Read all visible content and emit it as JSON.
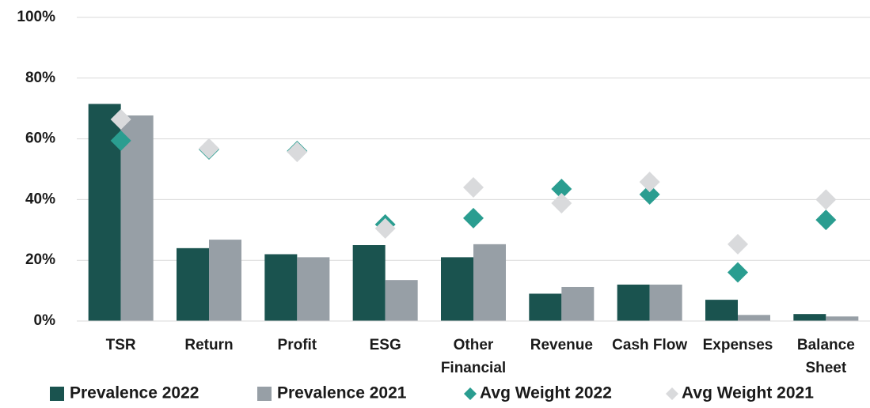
{
  "chart_data": {
    "type": "bar",
    "categories": [
      "TSR",
      "Return",
      "Profit",
      "ESG",
      "Other Financial",
      "Revenue",
      "Cash Flow",
      "Expenses",
      "Balance Sheet"
    ],
    "series": [
      {
        "name": "Prevalence 2022",
        "type": "bar",
        "color": "#1a534f",
        "values": [
          71.5,
          24,
          22,
          25,
          21,
          9,
          12,
          7,
          2.3
        ]
      },
      {
        "name": "Prevalence 2021",
        "type": "bar",
        "color": "#979fa6",
        "values": [
          67.7,
          26.8,
          21,
          13.5,
          25.3,
          11.2,
          12,
          2,
          1.5
        ]
      },
      {
        "name": "Avg Weight 2022",
        "type": "scatter",
        "color": "#2a9d90",
        "values": [
          59.4,
          56.5,
          56,
          31.8,
          33.9,
          43.5,
          41.7,
          16,
          33.3
        ]
      },
      {
        "name": "Avg Weight 2021",
        "type": "scatter",
        "color": "#d9dadc",
        "values": [
          66.4,
          56.8,
          55.7,
          30.5,
          44,
          38.8,
          45.8,
          25.3,
          40
        ]
      }
    ],
    "ylim": [
      0,
      100
    ],
    "yticks": [
      {
        "value": 0,
        "label": "0%"
      },
      {
        "value": 20,
        "label": "20%"
      },
      {
        "value": 40,
        "label": "40%"
      },
      {
        "value": 60,
        "label": "60%"
      },
      {
        "value": 80,
        "label": "80%"
      },
      {
        "value": 100,
        "label": "100%"
      }
    ],
    "grid": true,
    "legend": "bottom"
  }
}
